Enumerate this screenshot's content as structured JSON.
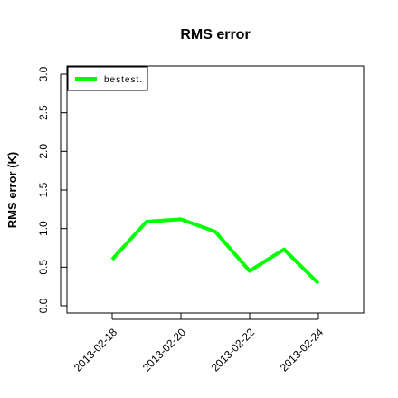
{
  "chart_data": {
    "type": "line",
    "title": "RMS error",
    "y_label": "RMS error (K)",
    "x": [
      "2013-02-18",
      "2013-02-19",
      "2013-02-20",
      "2013-02-21",
      "2013-02-22",
      "2013-02-23",
      "2013-02-24"
    ],
    "series": [
      {
        "name": "bestest.",
        "color": "#00ff00",
        "values": [
          0.6,
          1.09,
          1.12,
          0.96,
          0.45,
          0.73,
          0.29
        ]
      }
    ],
    "xlim": [
      "2013-02-17",
      "2013-02-25"
    ],
    "xticks": [
      "2013-02-18",
      "2013-02-20",
      "2013-02-22",
      "2013-02-24"
    ],
    "xtick_colors": [
      "#000000",
      "#000000",
      "#000000",
      "#ff0000"
    ],
    "ylim": [
      0,
      3
    ],
    "yticks": [
      {
        "value": 0,
        "label": "0.0"
      },
      0.5,
      {
        "value": 1,
        "label": "1.0"
      },
      1.5,
      {
        "value": 2,
        "label": "2.0"
      },
      2.5,
      {
        "value": 3,
        "label": "3.0"
      }
    ],
    "legend": "top-left"
  }
}
